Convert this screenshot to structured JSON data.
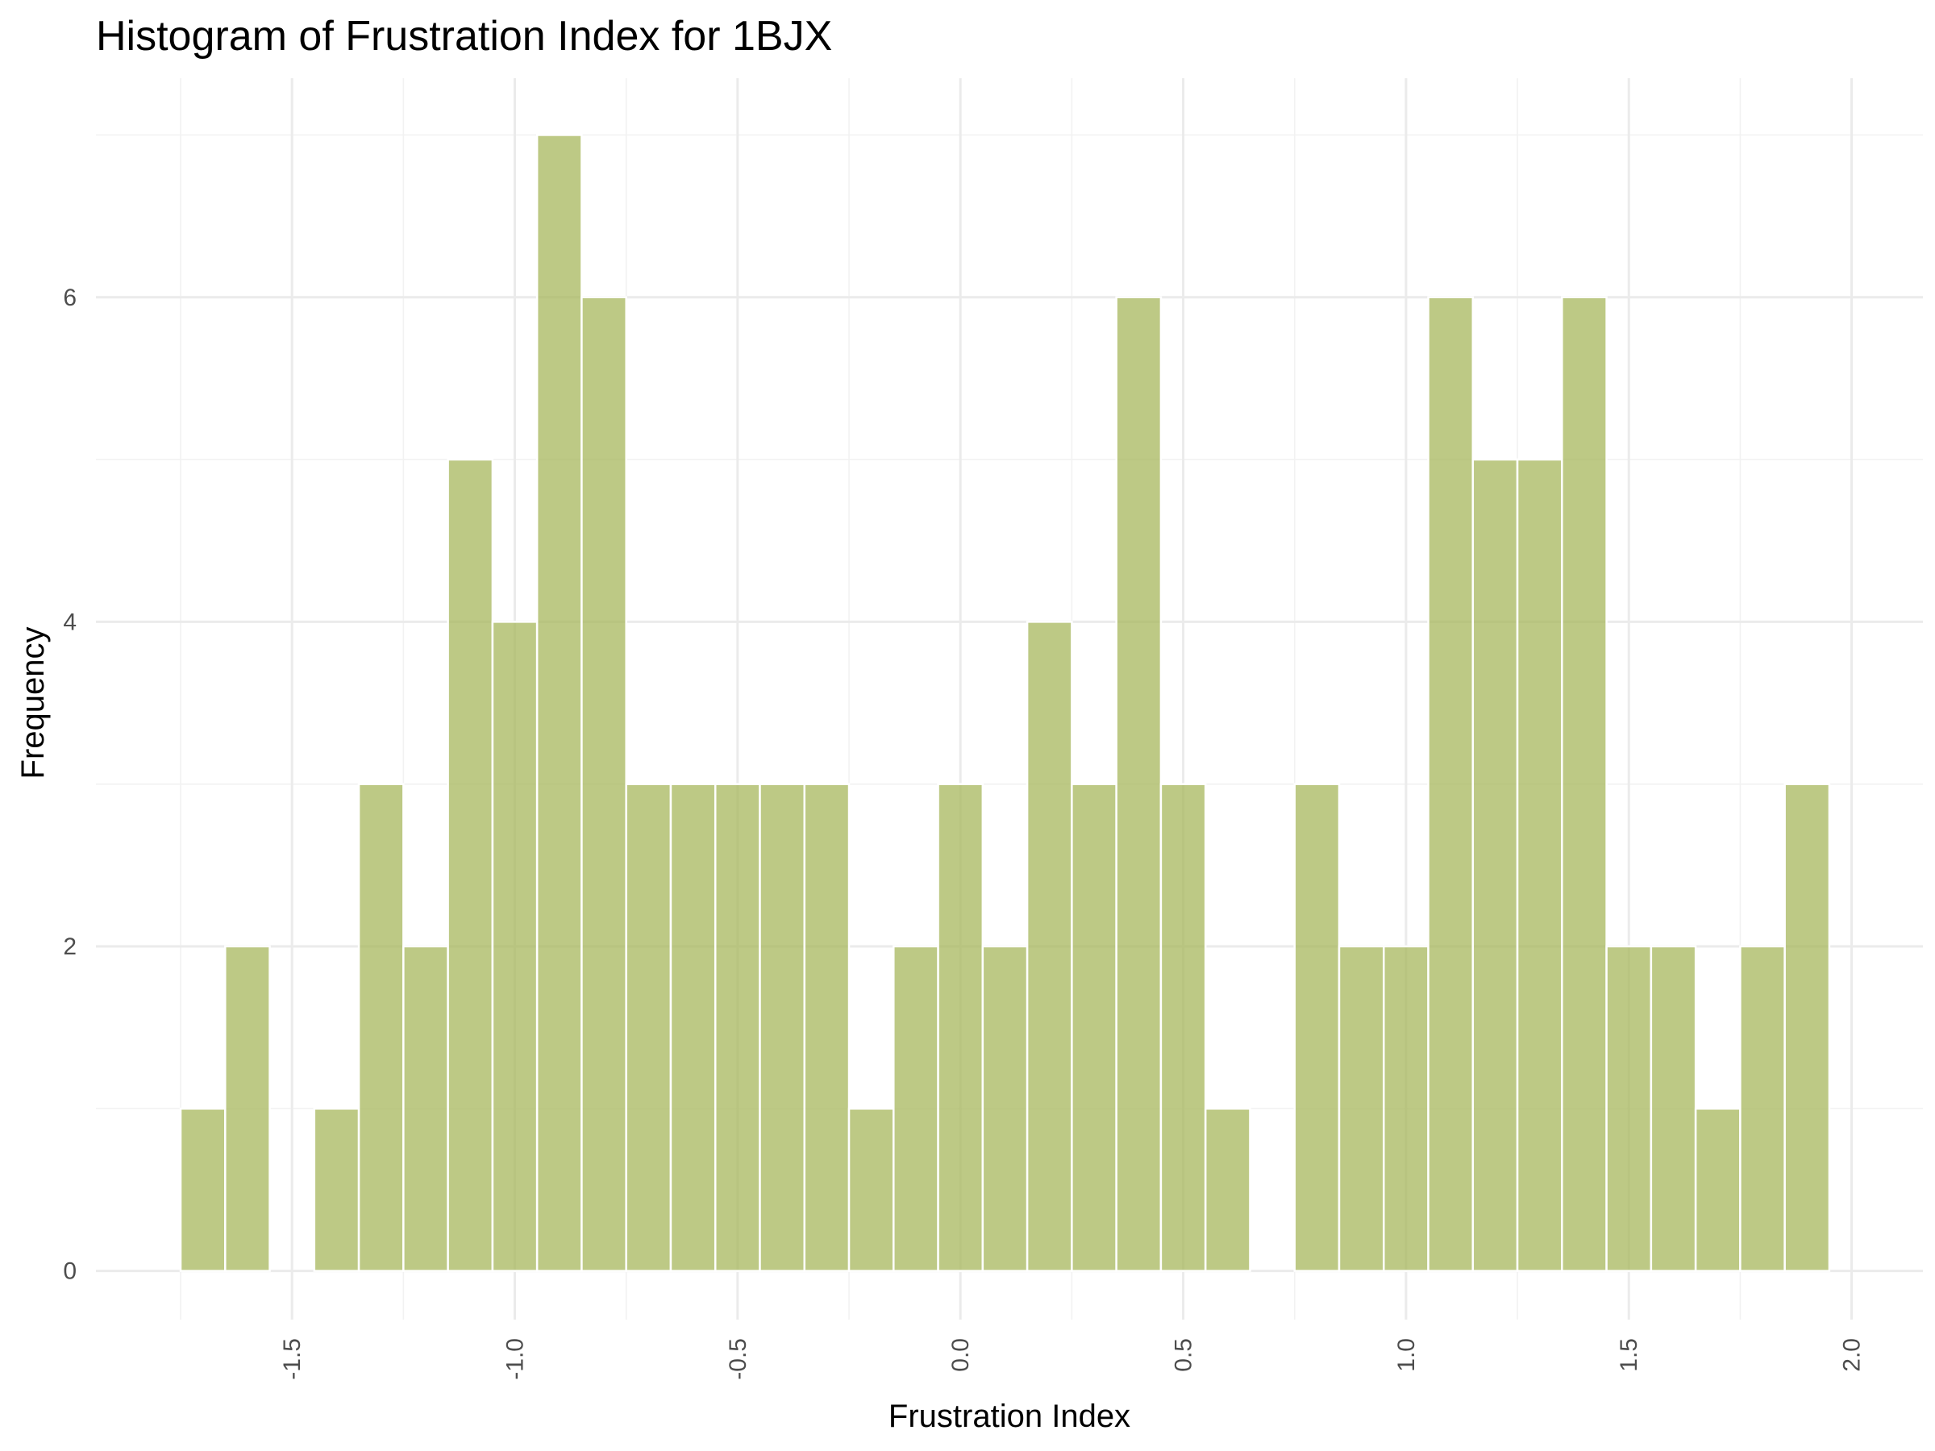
{
  "chart_data": {
    "type": "bar",
    "title": "Histogram of Frustration Index for 1BJX",
    "xlabel": "Frustration Index",
    "ylabel": "Frequency",
    "xlim": [
      -1.94,
      2.16
    ],
    "ylim": [
      -0.3,
      7.35
    ],
    "x_ticks": [
      {
        "value": -1.5,
        "label": "-1.5"
      },
      {
        "value": -1.0,
        "label": "-1.0"
      },
      {
        "value": -0.5,
        "label": "-0.5"
      },
      {
        "value": 0.0,
        "label": "0.0"
      },
      {
        "value": 0.5,
        "label": "0.5"
      },
      {
        "value": 1.0,
        "label": "1.0"
      },
      {
        "value": 1.5,
        "label": "1.5"
      },
      {
        "value": 2.0,
        "label": "2.0"
      }
    ],
    "y_ticks": [
      {
        "value": 0,
        "label": "0"
      },
      {
        "value": 2,
        "label": "2"
      },
      {
        "value": 4,
        "label": "4"
      },
      {
        "value": 6,
        "label": "6"
      }
    ],
    "grid": true,
    "bar_color": "#a4b456",
    "bar_border_color": "#ffffff",
    "bin_width": 0.1,
    "bins": [
      {
        "x0": -1.75,
        "x1": -1.65,
        "count": 1
      },
      {
        "x0": -1.65,
        "x1": -1.55,
        "count": 2
      },
      {
        "x0": -1.55,
        "x1": -1.45,
        "count": 0
      },
      {
        "x0": -1.45,
        "x1": -1.35,
        "count": 1
      },
      {
        "x0": -1.35,
        "x1": -1.25,
        "count": 3
      },
      {
        "x0": -1.25,
        "x1": -1.15,
        "count": 2
      },
      {
        "x0": -1.15,
        "x1": -1.05,
        "count": 5
      },
      {
        "x0": -1.05,
        "x1": -0.95,
        "count": 4
      },
      {
        "x0": -0.95,
        "x1": -0.85,
        "count": 7
      },
      {
        "x0": -0.85,
        "x1": -0.75,
        "count": 6
      },
      {
        "x0": -0.75,
        "x1": -0.65,
        "count": 3
      },
      {
        "x0": -0.65,
        "x1": -0.55,
        "count": 3
      },
      {
        "x0": -0.55,
        "x1": -0.45,
        "count": 3
      },
      {
        "x0": -0.45,
        "x1": -0.35,
        "count": 3
      },
      {
        "x0": -0.35,
        "x1": -0.25,
        "count": 3
      },
      {
        "x0": -0.25,
        "x1": -0.15,
        "count": 1
      },
      {
        "x0": -0.15,
        "x1": -0.05,
        "count": 2
      },
      {
        "x0": -0.05,
        "x1": 0.05,
        "count": 3
      },
      {
        "x0": 0.05,
        "x1": 0.15,
        "count": 2
      },
      {
        "x0": 0.15,
        "x1": 0.25,
        "count": 4
      },
      {
        "x0": 0.25,
        "x1": 0.35,
        "count": 3
      },
      {
        "x0": 0.35,
        "x1": 0.45,
        "count": 6
      },
      {
        "x0": 0.45,
        "x1": 0.55,
        "count": 3
      },
      {
        "x0": 0.55,
        "x1": 0.65,
        "count": 1
      },
      {
        "x0": 0.65,
        "x1": 0.75,
        "count": 0
      },
      {
        "x0": 0.75,
        "x1": 0.85,
        "count": 3
      },
      {
        "x0": 0.85,
        "x1": 0.95,
        "count": 2
      },
      {
        "x0": 0.95,
        "x1": 1.05,
        "count": 2
      },
      {
        "x0": 1.05,
        "x1": 1.15,
        "count": 6
      },
      {
        "x0": 1.15,
        "x1": 1.25,
        "count": 5
      },
      {
        "x0": 1.25,
        "x1": 1.35,
        "count": 5
      },
      {
        "x0": 1.35,
        "x1": 1.45,
        "count": 6
      },
      {
        "x0": 1.45,
        "x1": 1.55,
        "count": 2
      },
      {
        "x0": 1.55,
        "x1": 1.65,
        "count": 2
      },
      {
        "x0": 1.65,
        "x1": 1.75,
        "count": 1
      },
      {
        "x0": 1.75,
        "x1": 1.85,
        "count": 2
      },
      {
        "x0": 1.85,
        "x1": 1.95,
        "count": 3
      }
    ]
  }
}
